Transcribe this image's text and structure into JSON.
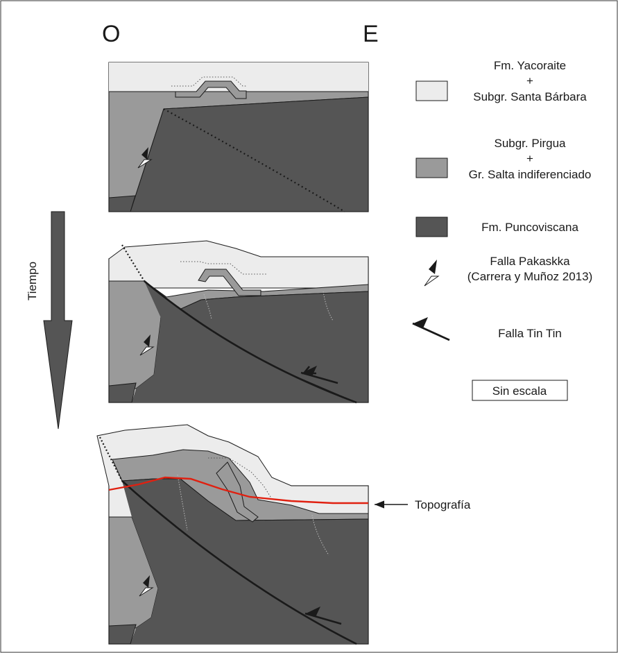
{
  "orientation": {
    "west": "O",
    "east": "E"
  },
  "time_axis": {
    "label": "Tiempo"
  },
  "legend": {
    "units": [
      {
        "name": "Fm. Yacoraite",
        "plus": "+",
        "name2": "Subgr. Santa Bárbara",
        "color": "#ececec"
      },
      {
        "name": "Subgr. Pirgua",
        "plus": "+",
        "name2": "Gr. Salta indiferenciado",
        "color": "#9a9a9a"
      },
      {
        "name": "Fm. Puncoviscana",
        "color": "#555555"
      }
    ],
    "faults": [
      {
        "line1": "Falla Pakaskka",
        "line2": "(Carrera y Muñoz 2013)",
        "icon": "half-arrow-pair-icon"
      },
      {
        "line1": "Falla Tin Tin",
        "icon": "thrust-arrow-icon"
      }
    ],
    "scale_note": "Sin escala"
  },
  "annotations": {
    "topography": "Topografía"
  },
  "colors": {
    "light": "#ececec",
    "medium": "#9a9a9a",
    "dark": "#555555",
    "topography_line": "#e02010",
    "outline": "#1a1a1a"
  }
}
